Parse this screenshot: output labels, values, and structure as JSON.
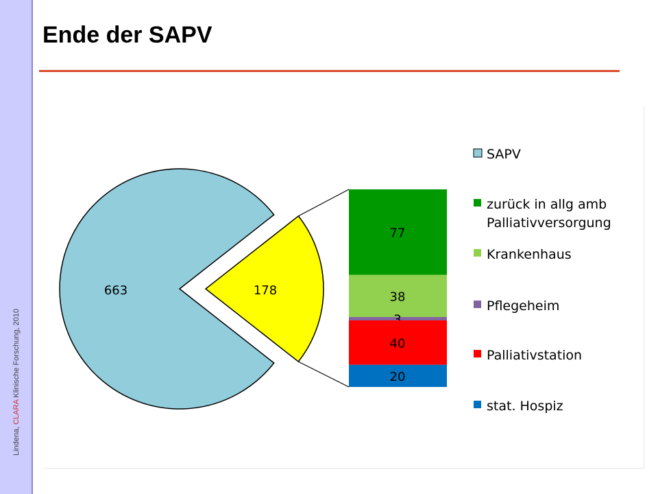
{
  "slide": {
    "title": "Ende der SAPV",
    "sidebar_prefix": "Lindena, ",
    "sidebar_brand": "CLARA",
    "sidebar_suffix": " Klinische Forschung, 2010"
  },
  "chart_data": {
    "type": "bar-of-pie",
    "title": "",
    "pie": {
      "slices": [
        {
          "name": "SAPV",
          "value": 663,
          "label": "663"
        },
        {
          "name": "",
          "value": 178,
          "label": "178"
        }
      ]
    },
    "stacked_bar": {
      "categories": [
        {
          "name": "zurück in allg amb Palliativversorgung",
          "value": 77,
          "label": "77"
        },
        {
          "name": "Krankenhaus",
          "value": 38,
          "label": "38"
        },
        {
          "name": "Pflegeheim",
          "value": 3,
          "label": "3"
        },
        {
          "name": "Palliativstation",
          "value": 40,
          "label": "40"
        },
        {
          "name": "stat. Hospiz",
          "value": 20,
          "label": "20"
        }
      ]
    },
    "legend": {
      "position": "right",
      "entries": [
        {
          "lines": [
            "SAPV"
          ],
          "color": "#92cddc"
        },
        {
          "lines": [
            "zurück in allg amb",
            "Palliativversorgung"
          ],
          "color": "#009900"
        },
        {
          "lines": [
            "Krankenhaus"
          ],
          "color": "#92d050"
        },
        {
          "lines": [
            "Pflegeheim"
          ],
          "color": "#8064a2"
        },
        {
          "lines": [
            "Palliativstation"
          ],
          "color": "#ff0000"
        },
        {
          "lines": [
            "stat. Hospiz"
          ],
          "color": "#0070c0"
        }
      ]
    },
    "colors": {
      "SAPV": "#92cddc",
      "other": "#ffff00",
      "zurück in allg amb Palliativversorgung": "#009900",
      "Krankenhaus": "#92d050",
      "Pflegeheim": "#8064a2",
      "Palliativstation": "#ff0000",
      "stat. Hospiz": "#0070c0"
    }
  }
}
